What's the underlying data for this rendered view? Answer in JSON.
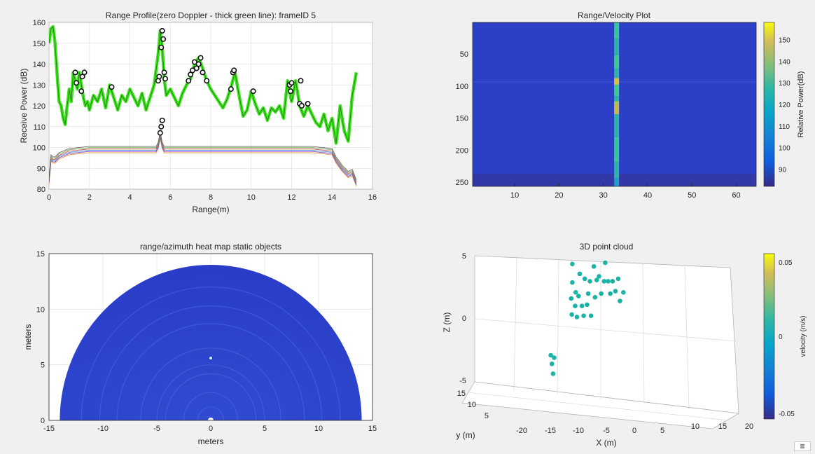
{
  "figure_title": "",
  "chart_data": [
    {
      "id": "range_profile",
      "type": "line",
      "title": "Range Profile(zero Doppler - thick green line): frameID 5",
      "xlabel": "Range(m)",
      "ylabel": "Receive Power (dB)",
      "xlim": [
        0,
        16
      ],
      "ylim": [
        80,
        160
      ],
      "x_ticks": [
        0,
        2,
        4,
        6,
        8,
        10,
        12,
        14,
        16
      ],
      "y_ticks": [
        80,
        90,
        100,
        110,
        120,
        130,
        140,
        150,
        160
      ],
      "grid": true,
      "series": [
        {
          "color": "#39e619",
          "role": "zero-doppler",
          "x": [
            0,
            0.1,
            0.2,
            0.3,
            0.4,
            0.5,
            0.6,
            0.7,
            0.8,
            0.9,
            1.0,
            1.1,
            1.2,
            1.3,
            1.4,
            1.5,
            1.6,
            1.7,
            1.8,
            1.9,
            2.0,
            2.2,
            2.4,
            2.6,
            2.8,
            3.0,
            3.2,
            3.4,
            3.6,
            3.8,
            4.0,
            4.2,
            4.4,
            4.6,
            4.8,
            5.0,
            5.2,
            5.4,
            5.5,
            5.6,
            5.7,
            5.8,
            6.0,
            6.2,
            6.4,
            6.6,
            6.8,
            7.0,
            7.2,
            7.4,
            7.6,
            7.8,
            8.0,
            8.2,
            8.4,
            8.6,
            8.8,
            9.0,
            9.2,
            9.4,
            9.6,
            9.8,
            10.0,
            10.2,
            10.4,
            10.6,
            10.8,
            11.0,
            11.2,
            11.4,
            11.6,
            11.8,
            12.0,
            12.2,
            12.4,
            12.6,
            12.8,
            13.0,
            13.2,
            13.4,
            13.6,
            13.8,
            14.0,
            14.2,
            14.4,
            14.6,
            14.8,
            15.0,
            15.2
          ],
          "values": [
            150,
            157,
            158,
            150,
            135,
            122,
            120,
            114,
            111,
            120,
            128,
            122,
            136,
            132,
            128,
            136,
            130,
            124,
            120,
            122,
            118,
            125,
            122,
            128,
            119,
            130,
            124,
            118,
            125,
            122,
            128,
            124,
            120,
            126,
            118,
            124,
            130,
            145,
            156,
            148,
            133,
            125,
            128,
            124,
            120,
            126,
            130,
            133,
            140,
            143,
            138,
            132,
            128,
            125,
            122,
            119,
            123,
            129,
            136,
            125,
            115,
            118,
            127,
            121,
            116,
            119,
            113,
            119,
            117,
            120,
            114,
            132,
            122,
            132,
            120,
            115,
            120,
            116,
            112,
            110,
            116,
            108,
            114,
            102,
            120,
            108,
            103,
            125,
            136
          ]
        },
        {
          "color": "#5a5a5a",
          "role": "other-doppler-bins",
          "x": [
            0,
            0.1,
            0.2,
            0.3,
            0.5,
            1,
            2,
            4,
            5.3,
            5.4,
            5.5,
            5.6,
            5.7,
            6,
            8,
            10,
            12,
            13,
            14,
            14.2,
            14.5,
            14.8,
            15.0,
            15.2
          ],
          "values": [
            84,
            95,
            94,
            94,
            96,
            98,
            99,
            99,
            99,
            101,
            106,
            101,
            99,
            99,
            99,
            99,
            99,
            99,
            98,
            94,
            90,
            87,
            88,
            83
          ]
        }
      ],
      "detected_points": {
        "x": [
          1.3,
          1.35,
          1.6,
          1.65,
          1.75,
          3.1,
          5.4,
          5.45,
          5.55,
          5.6,
          5.65,
          5.7,
          5.75,
          5.5,
          5.55,
          5.6,
          6.9,
          7.0,
          7.1,
          7.2,
          7.3,
          7.4,
          7.5,
          7.6,
          7.8,
          9.0,
          9.1,
          9.15,
          10.1,
          11.9,
          11.95,
          12.0,
          12.4,
          12.45,
          12.5,
          12.8
        ],
        "values": [
          136,
          131,
          127,
          134,
          136,
          129,
          132,
          134,
          148,
          156,
          152,
          136,
          133,
          107,
          110,
          113,
          132,
          135,
          137,
          141,
          138,
          140,
          143,
          136,
          132,
          128,
          136,
          137,
          127,
          130,
          127,
          131,
          121,
          132,
          120,
          121
        ]
      }
    },
    {
      "id": "range_velocity",
      "type": "heatmap",
      "title": "Range/Velocity Plot",
      "x_ticks": [
        10,
        20,
        30,
        40,
        50,
        60
      ],
      "y_ticks": [
        50,
        100,
        150,
        200,
        250
      ],
      "xlim": [
        0.5,
        64.5
      ],
      "ylim": [
        256.5,
        0.5
      ],
      "zero_doppler_column": 33,
      "colorbar_label": "Relative Power(dB)",
      "colorbar_ticks": [
        90,
        100,
        110,
        120,
        130,
        140,
        150
      ],
      "clim": [
        82,
        158
      ]
    },
    {
      "id": "azimuth_heatmap",
      "type": "heatmap",
      "title": "range/azimuth heat map static objects",
      "xlabel": "meters",
      "ylabel": "meters",
      "xlim": [
        -15,
        15
      ],
      "ylim": [
        0,
        15
      ],
      "x_ticks": [
        -15,
        -10,
        -5,
        0,
        5,
        10,
        15
      ],
      "y_ticks": [
        0,
        5,
        10,
        15
      ],
      "max_range": 14,
      "grid": true
    },
    {
      "id": "point_cloud",
      "type": "scatter",
      "title": "3D point cloud",
      "xlabel": "X (m)",
      "ylabel": "y (m)",
      "zlabel": "Z (m)",
      "x_ticks": [
        -20,
        -15,
        -10,
        -5,
        0,
        5,
        10,
        15,
        20
      ],
      "y_ticks": [
        5,
        10,
        15
      ],
      "z_ticks": [
        -5,
        0,
        5
      ],
      "colorbar_label": "velocity (m/s)",
      "colorbar_ticks": [
        0.05,
        0,
        -0.05
      ],
      "point_color": "#1ab3a6",
      "points": [
        [
          -6.1,
          0.4
        ],
        [
          -6.2,
          1.7
        ],
        [
          -6.0,
          3.0
        ],
        [
          -6.0,
          4.5
        ],
        [
          -5.5,
          1.1
        ],
        [
          -5.4,
          2.2
        ],
        [
          -5.2,
          0.2
        ],
        [
          -4.7,
          3.7
        ],
        [
          -4.9,
          1.9
        ],
        [
          -4.3,
          1.1
        ],
        [
          -4.0,
          0.3
        ],
        [
          -3.8,
          3.3
        ],
        [
          -3.4,
          1.2
        ],
        [
          -3.2,
          2.1
        ],
        [
          -2.9,
          3.1
        ],
        [
          -2.7,
          0.3
        ],
        [
          -2.2,
          4.3
        ],
        [
          -2.0,
          1.8
        ],
        [
          -1.7,
          3.2
        ],
        [
          -1.3,
          3.5
        ],
        [
          -0.9,
          2.1
        ],
        [
          -0.4,
          3.1
        ],
        [
          -0.2,
          4.6
        ],
        [
          0.3,
          3.1
        ],
        [
          0.7,
          2.1
        ],
        [
          1.1,
          3.1
        ],
        [
          1.6,
          2.3
        ],
        [
          2.1,
          3.3
        ],
        [
          2.4,
          1.5
        ],
        [
          3.0,
          2.2
        ],
        [
          -9.8,
          -2.9
        ],
        [
          -9.6,
          -3.6
        ],
        [
          -9.4,
          -4.4
        ],
        [
          -9.2,
          -3.1
        ]
      ]
    }
  ]
}
